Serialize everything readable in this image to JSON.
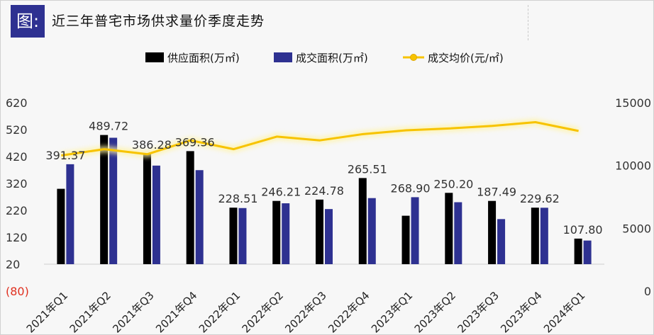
{
  "header": {
    "tag": "图:",
    "title": "近三年普宅市场供求量价季度走势"
  },
  "colors": {
    "supply": "#000000",
    "deal": "#2e3191",
    "price": "#f7c300",
    "negative_tick": "#e03020"
  },
  "chart_data": {
    "type": "bar",
    "legend_position": "top",
    "categories": [
      "2021年Q1",
      "2021年Q2",
      "2021年Q3",
      "2021年Q4",
      "2022年Q1",
      "2022年Q2",
      "2022年Q3",
      "2022年Q4",
      "2023年Q1",
      "2023年Q2",
      "2023年Q3",
      "2023年Q4",
      "2024年Q1"
    ],
    "series": [
      {
        "name": "供应面积(万㎡)",
        "type": "bar",
        "axis": "left",
        "values": [
          300,
          500,
          430,
          440,
          230,
          255,
          260,
          340,
          200,
          285,
          255,
          230,
          115
        ]
      },
      {
        "name": "成交面积(万㎡)",
        "type": "bar",
        "axis": "left",
        "values": [
          391.37,
          489.72,
          386.28,
          369.36,
          228.51,
          246.21,
          224.78,
          265.51,
          268.9,
          250.2,
          187.49,
          229.62,
          107.8
        ],
        "labels": [
          "391.37",
          "489.72",
          "386.28",
          "369.36",
          "228.51",
          "246.21",
          "224.78",
          "265.51",
          "268.90",
          "250.20",
          "187.49",
          "229.62",
          "107.80"
        ]
      },
      {
        "name": "成交均价(元/㎡)",
        "type": "line",
        "axis": "right",
        "values": [
          10800,
          11300,
          10900,
          12000,
          11300,
          12300,
          12000,
          12500,
          12800,
          12950,
          13150,
          13450,
          12750
        ]
      }
    ],
    "y_left": {
      "min": -80,
      "max": 620,
      "ticks": [
        620,
        520,
        420,
        320,
        220,
        120,
        20,
        -80
      ],
      "tick_labels": [
        "620",
        "520",
        "420",
        "320",
        "220",
        "120",
        "20",
        "(80)"
      ]
    },
    "y_right": {
      "min": 0,
      "max": 15000,
      "ticks": [
        15000,
        10000,
        5000,
        0
      ],
      "tick_labels": [
        "15000",
        "10000",
        "5000",
        "0"
      ]
    },
    "grid": false
  }
}
